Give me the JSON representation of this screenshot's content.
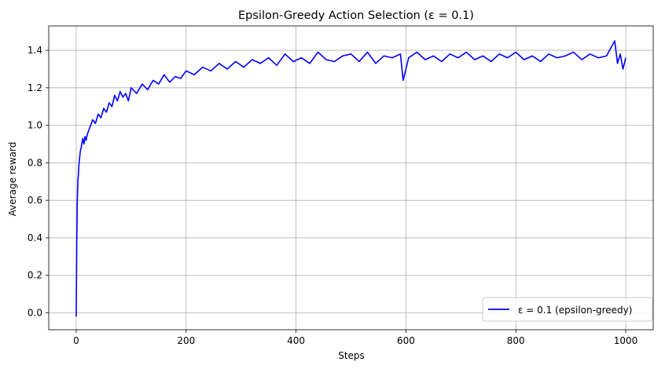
{
  "chart_data": {
    "type": "line",
    "title": "Epsilon-Greedy Action Selection (ε = 0.1)",
    "xlabel": "Steps",
    "ylabel": "Average reward",
    "xlim": [
      -50,
      1050
    ],
    "ylim": [
      -0.09,
      1.53
    ],
    "x_ticks": [
      0,
      200,
      400,
      600,
      800,
      1000
    ],
    "y_ticks": [
      0.0,
      0.2,
      0.4,
      0.6,
      0.8,
      1.0,
      1.2,
      1.4
    ],
    "x_tick_labels": [
      "0",
      "200",
      "400",
      "600",
      "800",
      "1000"
    ],
    "y_tick_labels": [
      "0.0",
      "0.2",
      "0.4",
      "0.6",
      "0.8",
      "1.0",
      "1.2",
      "1.4"
    ],
    "grid": true,
    "legend_position": "bottom-right",
    "series": [
      {
        "name": "ε = 0.1 (epsilon-greedy)",
        "color": "#0000ff",
        "x": [
          0,
          1,
          2,
          3,
          4,
          5,
          6,
          7,
          8,
          9,
          10,
          12,
          14,
          16,
          18,
          20,
          25,
          30,
          35,
          40,
          45,
          50,
          55,
          60,
          65,
          70,
          75,
          80,
          85,
          90,
          95,
          100,
          110,
          120,
          130,
          140,
          150,
          160,
          170,
          180,
          190,
          200,
          215,
          230,
          245,
          260,
          275,
          290,
          305,
          320,
          335,
          350,
          365,
          380,
          395,
          410,
          425,
          440,
          455,
          470,
          485,
          500,
          515,
          530,
          545,
          560,
          575,
          590,
          595,
          605,
          620,
          635,
          650,
          665,
          680,
          695,
          710,
          725,
          740,
          755,
          770,
          785,
          800,
          815,
          830,
          845,
          860,
          875,
          890,
          905,
          920,
          935,
          950,
          965,
          980,
          985,
          990,
          995,
          1000
        ],
        "y": [
          -0.02,
          0.38,
          0.6,
          0.7,
          0.74,
          0.79,
          0.82,
          0.85,
          0.87,
          0.88,
          0.9,
          0.93,
          0.9,
          0.94,
          0.92,
          0.95,
          0.99,
          1.03,
          1.01,
          1.06,
          1.04,
          1.09,
          1.07,
          1.12,
          1.1,
          1.16,
          1.13,
          1.18,
          1.15,
          1.17,
          1.13,
          1.2,
          1.17,
          1.22,
          1.19,
          1.24,
          1.22,
          1.27,
          1.23,
          1.26,
          1.25,
          1.29,
          1.27,
          1.31,
          1.29,
          1.33,
          1.3,
          1.34,
          1.31,
          1.35,
          1.33,
          1.36,
          1.32,
          1.38,
          1.34,
          1.36,
          1.33,
          1.39,
          1.35,
          1.34,
          1.37,
          1.38,
          1.34,
          1.39,
          1.33,
          1.37,
          1.36,
          1.38,
          1.24,
          1.36,
          1.39,
          1.35,
          1.37,
          1.34,
          1.38,
          1.36,
          1.39,
          1.35,
          1.37,
          1.34,
          1.38,
          1.36,
          1.39,
          1.35,
          1.37,
          1.34,
          1.38,
          1.36,
          1.37,
          1.39,
          1.35,
          1.38,
          1.36,
          1.37,
          1.45,
          1.33,
          1.38,
          1.3,
          1.36
        ]
      }
    ]
  }
}
